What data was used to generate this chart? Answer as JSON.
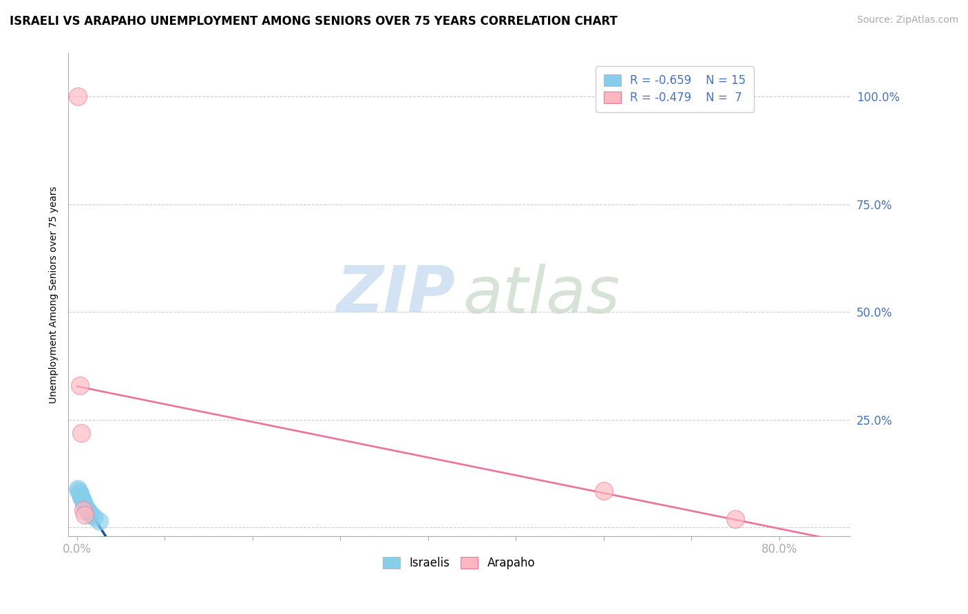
{
  "title": "ISRAELI VS ARAPAHO UNEMPLOYMENT AMONG SENIORS OVER 75 YEARS CORRELATION CHART",
  "source_text": "Source: ZipAtlas.com",
  "ylabel": "Unemployment Among Seniors over 75 years",
  "xlim": [
    -0.01,
    0.88
  ],
  "ylim": [
    -0.02,
    1.1
  ],
  "xticks": [
    0.0,
    0.1,
    0.2,
    0.3,
    0.4,
    0.5,
    0.6,
    0.7,
    0.8
  ],
  "xtick_labels_show": {
    "0.0": "0.0%",
    "0.8": "80.0%"
  },
  "yticks": [
    0.0,
    0.25,
    0.5,
    0.75,
    1.0
  ],
  "ytick_labels": [
    "",
    "25.0%",
    "50.0%",
    "75.0%",
    "100.0%"
  ],
  "blue_color": "#87CEEB",
  "blue_line_color": "#1B4F9C",
  "pink_color": "#FFB6C1",
  "pink_line_color": "#E8799A",
  "legend_R_blue": "R = -0.659",
  "legend_N_blue": "N = 15",
  "legend_R_pink": "R = -0.479",
  "legend_N_pink": "N =  7",
  "legend_label_blue": "Israelis",
  "legend_label_pink": "Arapaho",
  "israelis_x": [
    0.001,
    0.002,
    0.003,
    0.004,
    0.005,
    0.006,
    0.007,
    0.008,
    0.009,
    0.01,
    0.012,
    0.014,
    0.016,
    0.02,
    0.025
  ],
  "israelis_y": [
    0.09,
    0.085,
    0.08,
    0.075,
    0.07,
    0.065,
    0.06,
    0.055,
    0.05,
    0.045,
    0.04,
    0.035,
    0.03,
    0.025,
    0.015
  ],
  "arapaho_x": [
    0.001,
    0.003,
    0.005,
    0.007,
    0.009,
    0.6,
    0.75
  ],
  "arapaho_y": [
    1.0,
    0.33,
    0.22,
    0.04,
    0.03,
    0.085,
    0.02
  ]
}
